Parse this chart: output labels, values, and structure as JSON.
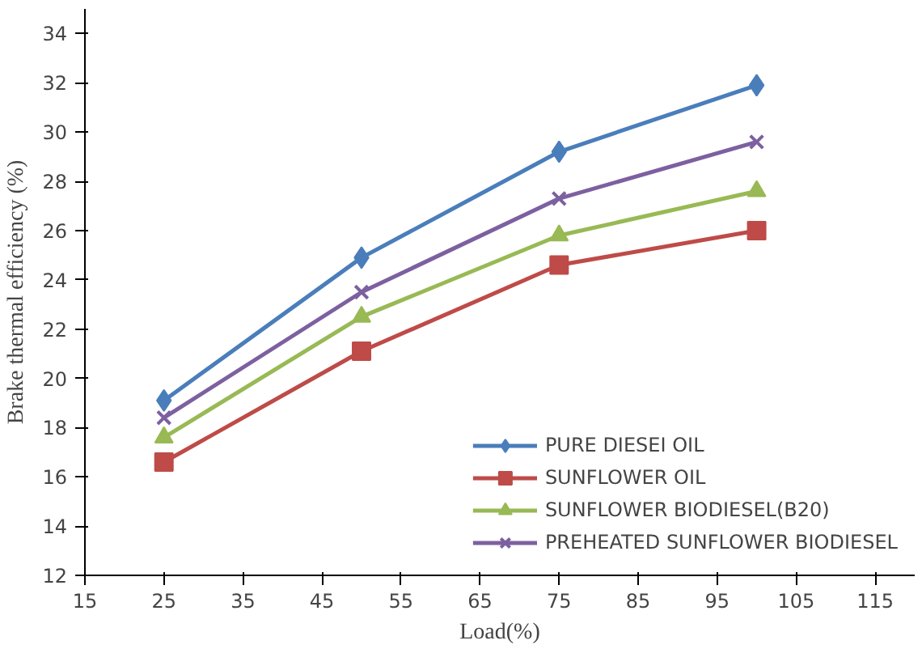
{
  "chart_data": {
    "type": "line",
    "xlabel": "Load(%)",
    "ylabel": "Brake thermal efficiency (%)",
    "x": [
      25,
      50,
      75,
      100
    ],
    "series": [
      {
        "name": "PURE DIESEI OIL",
        "color": "#4a7ebb",
        "marker": "diamond",
        "values": [
          19.1,
          24.9,
          29.2,
          31.9
        ]
      },
      {
        "name": "SUNFLOWER OIL",
        "color": "#be4b48",
        "marker": "square",
        "values": [
          16.6,
          21.1,
          24.6,
          26.0
        ]
      },
      {
        "name": "SUNFLOWER BIODIESEL(B20)",
        "color": "#98b954",
        "marker": "triangle",
        "values": [
          17.6,
          22.5,
          25.8,
          27.6
        ]
      },
      {
        "name": "PREHEATED SUNFLOWER BIODIESEL",
        "color": "#7d60a0",
        "marker": "cross",
        "values": [
          18.4,
          23.5,
          27.3,
          29.6
        ]
      }
    ],
    "xlim": [
      15,
      120
    ],
    "xticks": [
      15,
      25,
      35,
      45,
      55,
      65,
      75,
      85,
      95,
      105,
      115
    ],
    "ylim": [
      12,
      35
    ],
    "yticks": [
      12,
      14,
      16,
      18,
      20,
      22,
      24,
      26,
      28,
      30,
      32,
      34
    ],
    "grid": false,
    "legend": "bottom right"
  }
}
